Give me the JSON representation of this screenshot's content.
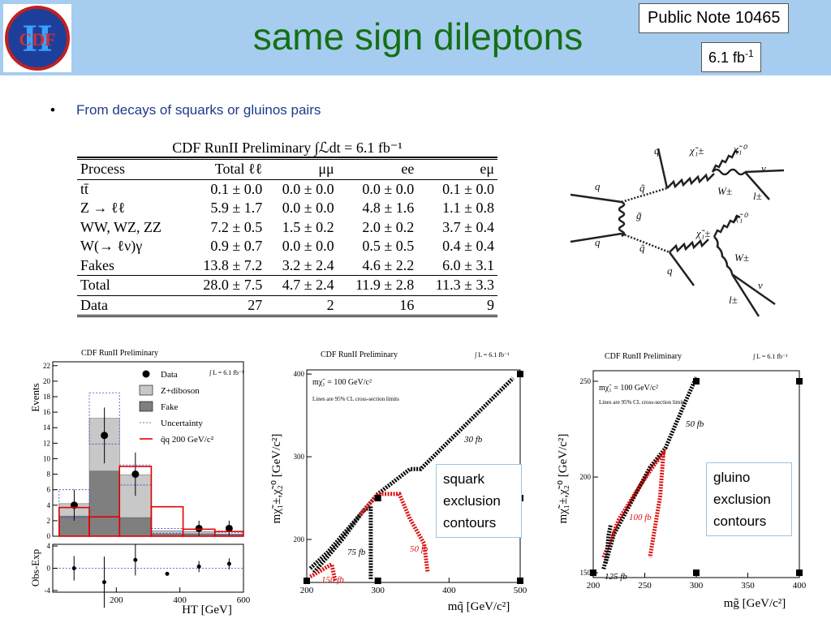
{
  "header": {
    "logo": "CDF",
    "logo_numeral": "II",
    "title": "same sign dileptons",
    "note": "Public Note 10465",
    "lumi": "6.1 fb",
    "lumi_exp": "-1"
  },
  "bullet": "From decays of squarks or gluinos pairs",
  "table": {
    "title": "CDF RunII Preliminary ∫ℒdt = 6.1 fb⁻¹",
    "columns": [
      "Process",
      "Total ℓℓ",
      "μμ",
      "ee",
      "eμ"
    ],
    "rows": [
      [
        "tt̄",
        "0.1 ± 0.0",
        "0.0 ± 0.0",
        "0.0 ± 0.0",
        "0.1 ± 0.0"
      ],
      [
        "Z → ℓℓ",
        "5.9 ± 1.7",
        "0.0 ± 0.0",
        "4.8 ± 1.6",
        "1.1 ± 0.8"
      ],
      [
        "WW, WZ, ZZ",
        "7.2 ± 0.5",
        "1.5 ± 0.2",
        "2.0 ± 0.2",
        "3.7 ± 0.4"
      ],
      [
        "W(→ ℓν)γ",
        "0.9 ± 0.7",
        "0.0 ± 0.0",
        "0.5 ± 0.5",
        "0.4 ± 0.4"
      ],
      [
        "Fakes",
        "13.8 ± 7.2",
        "3.2 ± 2.4",
        "4.6 ± 2.2",
        "6.0 ± 3.1"
      ],
      [
        "Total",
        "28.0 ± 7.5",
        "4.7 ± 2.4",
        "11.9 ± 2.8",
        "11.3 ± 3.3"
      ],
      [
        "Data",
        "27",
        "2",
        "16",
        "9"
      ]
    ]
  },
  "diagram": {
    "labels": [
      "q",
      "q",
      "g̃",
      "q̃",
      "q̃",
      "q",
      "χ̃₁±",
      "χ̃₁⁰",
      "ν",
      "W±",
      "l±",
      "q",
      "χ̃₁±",
      "χ̃₁⁰",
      "W±",
      "ν",
      "l±"
    ]
  },
  "chart_data": [
    {
      "type": "histogram",
      "title": "CDF RunII Preliminary",
      "annotation": "∫ L = 6.1 fb⁻¹",
      "y_label": "Events",
      "bins": [
        20,
        115,
        210,
        310,
        410,
        510,
        600
      ],
      "xlim": [
        0,
        600
      ],
      "ylim": [
        0,
        22.5
      ],
      "yticks": [
        0,
        2,
        4,
        6,
        8,
        10,
        12,
        14,
        16,
        18,
        20,
        22
      ],
      "series": [
        {
          "name": "Data",
          "style": "points",
          "color": "#000000",
          "values": [
            4,
            13,
            8,
            null,
            1,
            1
          ],
          "errors": [
            2,
            3.6,
            2.8,
            null,
            1,
            1
          ]
        },
        {
          "name": "Z+diboson",
          "style": "stacked",
          "color": "#c8c8c8",
          "values": [
            1.6,
            6.8,
            5.5,
            0.4,
            0.3,
            0
          ]
        },
        {
          "name": "Fake",
          "style": "stacked",
          "color": "#7f7f7f",
          "values": [
            2.6,
            8.4,
            2.4,
            0.3,
            0.3,
            0.3
          ]
        },
        {
          "name": "Uncertainty",
          "style": "band",
          "color": "#3344cc",
          "values": [
            1.8,
            3.3,
            1.3,
            0.3,
            0.3,
            0.2
          ]
        },
        {
          "name": "q̄q 200 GeV/c²",
          "style": "step",
          "color": "#e00000",
          "values": [
            3.7,
            2.5,
            9,
            3.8,
            0.9,
            0.6
          ]
        }
      ]
    },
    {
      "type": "scatter",
      "y_label": "Obs-Exp",
      "x_label": "HT [GeV]",
      "xlim": [
        0,
        600
      ],
      "xticks": [
        200,
        400,
        600
      ],
      "ylim": [
        -4.3,
        4.3
      ],
      "yticks": [
        -4,
        0,
        4
      ],
      "color": "#000000",
      "x": [
        67,
        162,
        260,
        360,
        460,
        555
      ],
      "values": [
        0,
        -2.5,
        1.5,
        -1,
        0.3,
        0.8
      ],
      "errors": [
        2.2,
        4.6,
        2.8,
        0.2,
        1,
        1
      ]
    },
    {
      "type": "line",
      "title": "CDF RunII Preliminary",
      "annotation": "∫ L = 6.1 fb⁻¹",
      "note": "mχ̃₁ = 100 GeV/c²",
      "note2": "Lines are 95% CL cross-section limits",
      "x_label": "mq̃ [GeV/c²]",
      "y_label": "mχ̃₁±,χ̃₂⁰ [GeV/c²]",
      "callout": "squark exclusion contours",
      "xlim": [
        200,
        500
      ],
      "xticks": [
        200,
        300,
        400,
        500
      ],
      "ylim": [
        148,
        405
      ],
      "yticks": [
        200,
        300,
        400
      ],
      "series": [
        {
          "name": "30 fb",
          "color": "#000000",
          "x": [
            205,
            230,
            270,
            300,
            330,
            345,
            360,
            490
          ],
          "values": [
            165,
            185,
            225,
            255,
            275,
            285,
            285,
            395
          ]
        },
        {
          "name": "75 fb",
          "color": "#000000",
          "x": [
            210,
            250,
            280,
            290,
            290
          ],
          "values": [
            160,
            200,
            235,
            240,
            152
          ]
        },
        {
          "name": "50 fb",
          "color": "#dd1111",
          "x": [
            275,
            300,
            330,
            345,
            365,
            370
          ],
          "values": [
            230,
            255,
            255,
            225,
            195,
            160
          ]
        },
        {
          "name": "150 fb",
          "color": "#dd1111",
          "x": [
            205,
            225,
            235,
            240
          ],
          "values": [
            155,
            165,
            170,
            150
          ]
        }
      ],
      "markers": {
        "x": [
          200,
          300,
          500,
          300,
          500,
          500
        ],
        "values": [
          150,
          150,
          150,
          250,
          250,
          400
        ]
      }
    },
    {
      "type": "line",
      "title": "CDF RunII Preliminary",
      "annotation": "∫ L = 6.1 fb⁻¹",
      "note": "mχ̃₁ = 100 GeV/c²",
      "note2": "Lines are 95% CL cross-section limits",
      "x_label": "mg̃ [GeV/c²]",
      "y_label": "mχ̃₁±,χ̃₂⁰ [GeV/c²]",
      "callout": "gluino exclusion contours",
      "xlim": [
        200,
        400
      ],
      "xticks": [
        200,
        250,
        300,
        350,
        400
      ],
      "ylim": [
        147.5,
        255.5
      ],
      "yticks": [
        150,
        200,
        250
      ],
      "series": [
        {
          "name": "50 fb",
          "color": "#000000",
          "x": [
            212,
            220,
            240,
            255,
            270,
            290,
            300
          ],
          "values": [
            155,
            170,
            190,
            205,
            215,
            240,
            252
          ]
        },
        {
          "name": "100 fb",
          "color": "#dd1111",
          "x": [
            210,
            225,
            245,
            260,
            268,
            265,
            255
          ],
          "values": [
            158,
            178,
            195,
            207,
            212,
            190,
            158
          ]
        },
        {
          "name": "125 fb",
          "color": "#000000",
          "x": [
            210,
            213,
            215,
            217
          ],
          "values": [
            152,
            158,
            170,
            175
          ]
        }
      ],
      "markers": {
        "x": [
          200,
          300,
          400,
          300,
          400
        ],
        "values": [
          150,
          150,
          150,
          250,
          250
        ]
      }
    }
  ]
}
